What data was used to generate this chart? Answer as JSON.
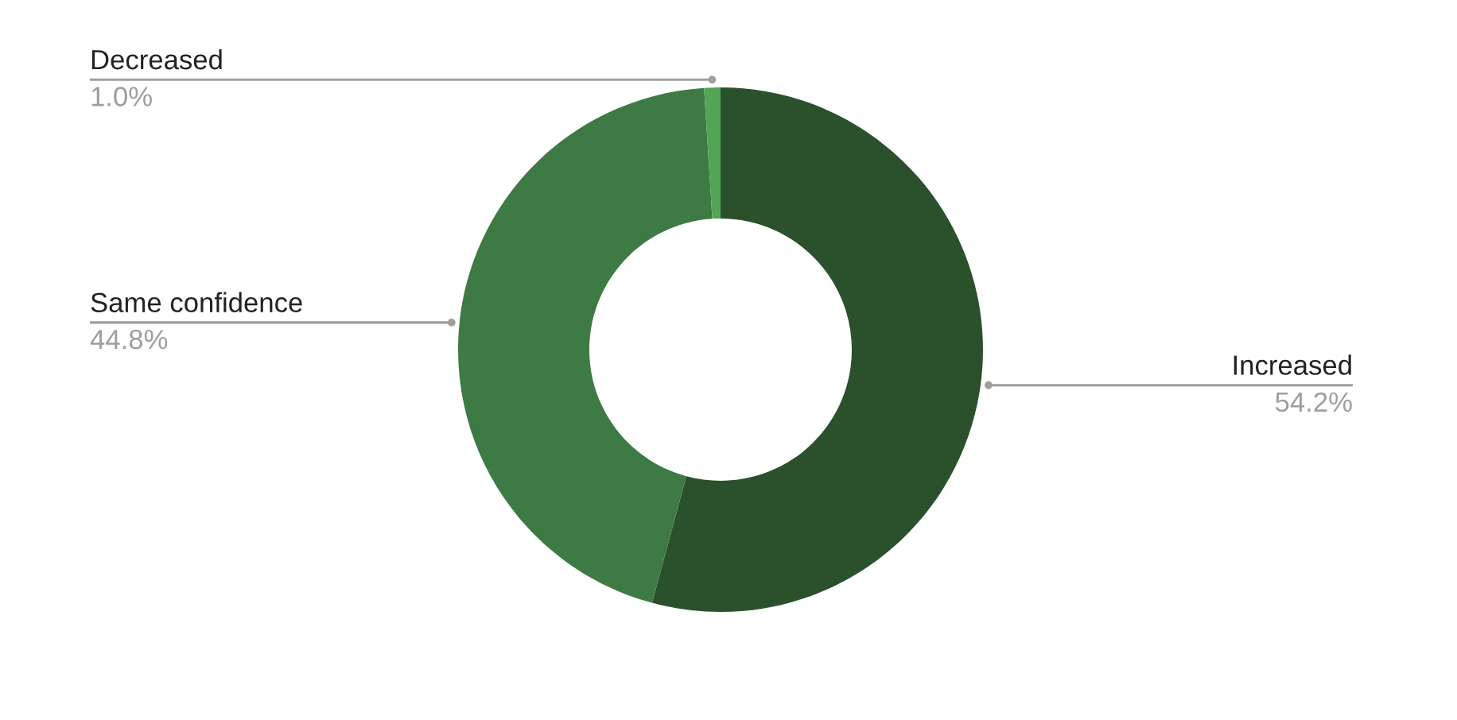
{
  "chart_data": {
    "type": "donut",
    "categories": [
      "Increased",
      "Same confidence",
      "Decreased"
    ],
    "values": [
      54.2,
      44.8,
      1.0
    ],
    "colors": [
      "#2b512c",
      "#3e7a43",
      "#51a554"
    ],
    "value_labels": [
      "54.2%",
      "44.8%",
      "1.0%"
    ]
  }
}
